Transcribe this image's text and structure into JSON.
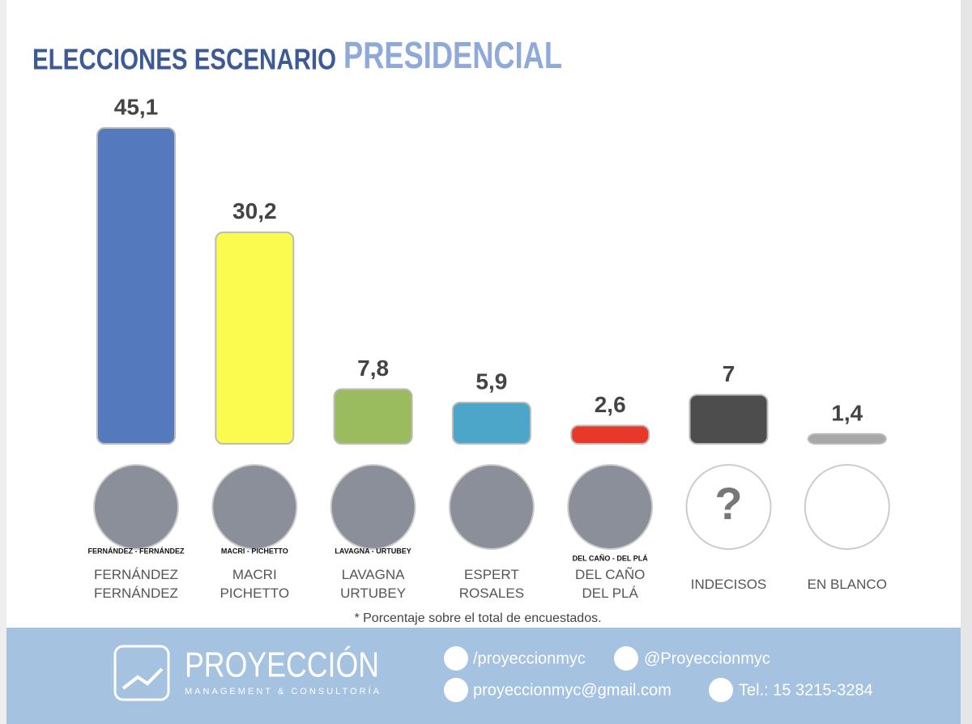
{
  "chart_data": {
    "type": "bar",
    "title": "ELECCIONES ESCENARIO",
    "title_highlight": "PRESIDENCIAL",
    "categories": [
      "FERNÁNDEZ\nFERNÁNDEZ",
      "MACRI\nPICHETTO",
      "LAVAGNA\nURTUBEY",
      "ESPERT\nROSALES",
      "DEL CAÑO\nDEL PLÁ",
      "INDECISOS",
      "EN BLANCO"
    ],
    "values": [
      45.1,
      30.2,
      7.8,
      5.9,
      2.6,
      7,
      1.4
    ],
    "value_labels": [
      "45,1",
      "30,2",
      "7,8",
      "5,9",
      "2,6",
      "7",
      "1,4"
    ],
    "colors": [
      "#5479bd",
      "#fbfb4f",
      "#9bbb5f",
      "#4ba6c9",
      "#e8382a",
      "#4d4d4d",
      "#a8a8a8"
    ],
    "photo_captions": [
      "FERNÁNDEZ - FERNÁNDEZ",
      "MACRI - PICHETTO",
      "LAVAGNA - URTUBEY",
      null,
      "DEL CAÑO - DEL PLÁ",
      null,
      null
    ],
    "unknown_icon": "?",
    "footnote": "* Porcentaje sobre el total de encuestados.",
    "footer": {
      "brand": "PROYECCIÓN",
      "tagline": "MANAGEMENT & CONSULTORÍA",
      "facebook": "/proyeccionmyc",
      "twitter": "@Proyeccionmyc",
      "email": "proyeccionmyc@gmail.com",
      "phone": "Tel.: 15 3215-3284"
    }
  }
}
